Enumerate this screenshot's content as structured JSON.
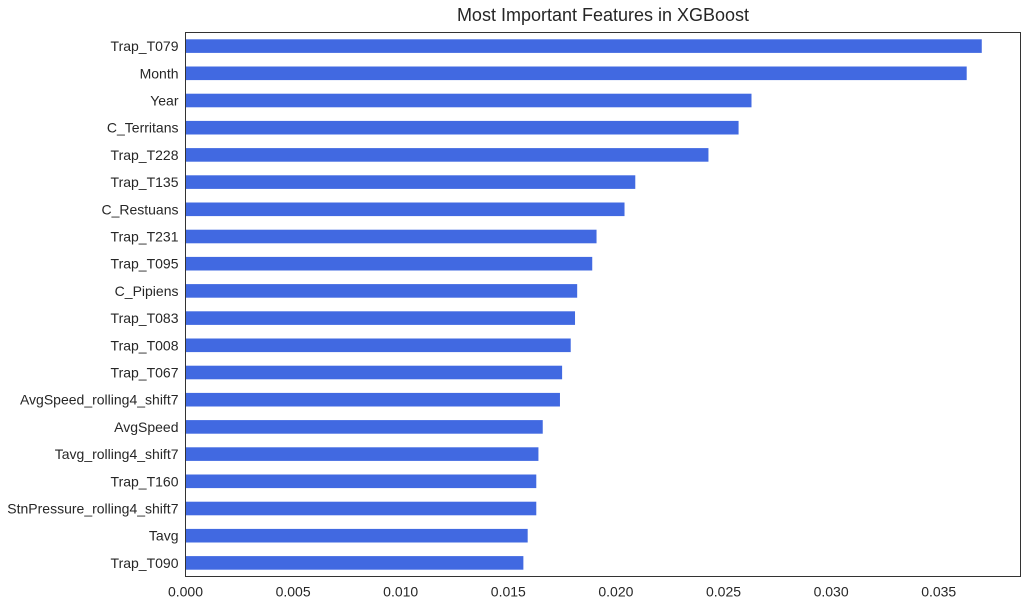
{
  "chart_data": {
    "type": "bar",
    "orientation": "horizontal",
    "title": "Most Important Features in XGBoost",
    "xlabel": "",
    "ylabel": "",
    "bar_color": "#4169E1",
    "grid": false,
    "legend": "none",
    "xlim": [
      0,
      0.0388
    ],
    "x_ticks": [
      0.0,
      0.005,
      0.01,
      0.015,
      0.02,
      0.025,
      0.03,
      0.035
    ],
    "x_tick_labels": [
      "0.000",
      "0.005",
      "0.010",
      "0.015",
      "0.020",
      "0.025",
      "0.030",
      "0.035"
    ],
    "categories": [
      "Trap_T079",
      "Month",
      "Year",
      "C_Territans",
      "Trap_T228",
      "Trap_T135",
      "C_Restuans",
      "Trap_T231",
      "Trap_T095",
      "C_Pipiens",
      "Trap_T083",
      "Trap_T008",
      "Trap_T067",
      "AvgSpeed_rolling4_shift7",
      "AvgSpeed",
      "Tavg_rolling4_shift7",
      "Trap_T160",
      "StnPressure_rolling4_shift7",
      "Tavg",
      "Trap_T090"
    ],
    "values": [
      0.037,
      0.0363,
      0.0263,
      0.0257,
      0.0243,
      0.0209,
      0.0204,
      0.0191,
      0.0189,
      0.0182,
      0.0181,
      0.0179,
      0.0175,
      0.0174,
      0.0166,
      0.0164,
      0.0163,
      0.0163,
      0.0159,
      0.0157
    ]
  }
}
